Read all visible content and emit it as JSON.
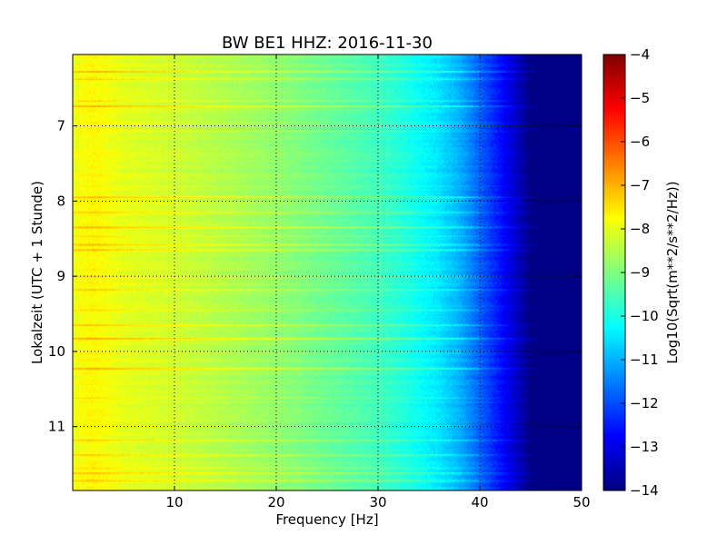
{
  "chart_data": {
    "type": "heatmap",
    "title": "BW BE1 HHZ: 2016-11-30",
    "xlabel": "Frequency [Hz]",
    "ylabel": "Lokalzeit (UTC + 1 Stunde)",
    "xlim": [
      0,
      50
    ],
    "ylim": [
      11.85,
      6.05
    ],
    "y_inverted": true,
    "x_ticks": [
      10,
      20,
      30,
      40,
      50
    ],
    "y_ticks": [
      7,
      8,
      9,
      10,
      11
    ],
    "x_tick_labels": [
      "10",
      "20",
      "30",
      "40",
      "50"
    ],
    "y_tick_labels": [
      "7",
      "8",
      "9",
      "10",
      "11"
    ],
    "grid": true,
    "colormap": "jet",
    "colorbar": {
      "label": "Log10(Sqrt(m**2/s**2/Hz))",
      "range": [
        -14,
        -4
      ],
      "ticks": [
        -4,
        -5,
        -6,
        -7,
        -8,
        -9,
        -10,
        -11,
        -12,
        -13,
        -14
      ],
      "tick_labels": [
        "−4",
        "−5",
        "−6",
        "−7",
        "−8",
        "−9",
        "−10",
        "−11",
        "−12",
        "−13",
        "−14"
      ]
    },
    "spectral_profile": {
      "frequency_hz": [
        0,
        2,
        5,
        10,
        15,
        20,
        25,
        30,
        33,
        36,
        38,
        40,
        42,
        44,
        45,
        50
      ],
      "log10_amplitude": [
        -7.9,
        -7.7,
        -8.0,
        -8.2,
        -8.5,
        -8.8,
        -9.2,
        -9.6,
        -10.0,
        -10.5,
        -11.0,
        -11.8,
        -12.6,
        -13.5,
        -14.0,
        -14.0
      ]
    },
    "bands": [
      {
        "time": 6.28,
        "delta": 0.9
      },
      {
        "time": 6.38,
        "delta": 0.5
      },
      {
        "time": 6.67,
        "delta": 0.5
      },
      {
        "time": 6.74,
        "delta": 1.0
      },
      {
        "time": 7.95,
        "delta": 0.8
      },
      {
        "time": 8.15,
        "delta": 0.7
      },
      {
        "time": 8.35,
        "delta": 0.8
      },
      {
        "time": 8.47,
        "delta": 0.6
      },
      {
        "time": 8.58,
        "delta": 0.8
      },
      {
        "time": 8.65,
        "delta": 0.7
      },
      {
        "time": 9.0,
        "delta": 0.5
      },
      {
        "time": 9.18,
        "delta": 0.5
      },
      {
        "time": 9.45,
        "delta": 0.6
      },
      {
        "time": 9.65,
        "delta": 0.8
      },
      {
        "time": 9.83,
        "delta": 1.0
      },
      {
        "time": 10.23,
        "delta": 1.0
      },
      {
        "time": 10.62,
        "delta": 0.4
      },
      {
        "time": 11.18,
        "delta": 0.5
      },
      {
        "time": 11.38,
        "delta": 0.8
      },
      {
        "time": 11.55,
        "delta": 0.5
      },
      {
        "time": 11.62,
        "delta": 0.7
      },
      {
        "time": 11.72,
        "delta": 0.9
      }
    ]
  }
}
